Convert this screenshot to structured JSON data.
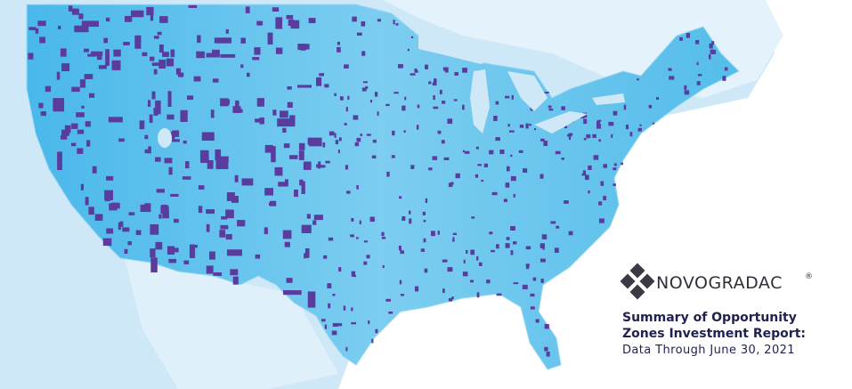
{
  "logo": {
    "name": "NOVOGRADAC",
    "mark": "®"
  },
  "report": {
    "title_line1": "Summary of Opportunity",
    "title_line2": "Zones Investment Report:",
    "subtitle": "Data Through June 30, 2021"
  }
}
